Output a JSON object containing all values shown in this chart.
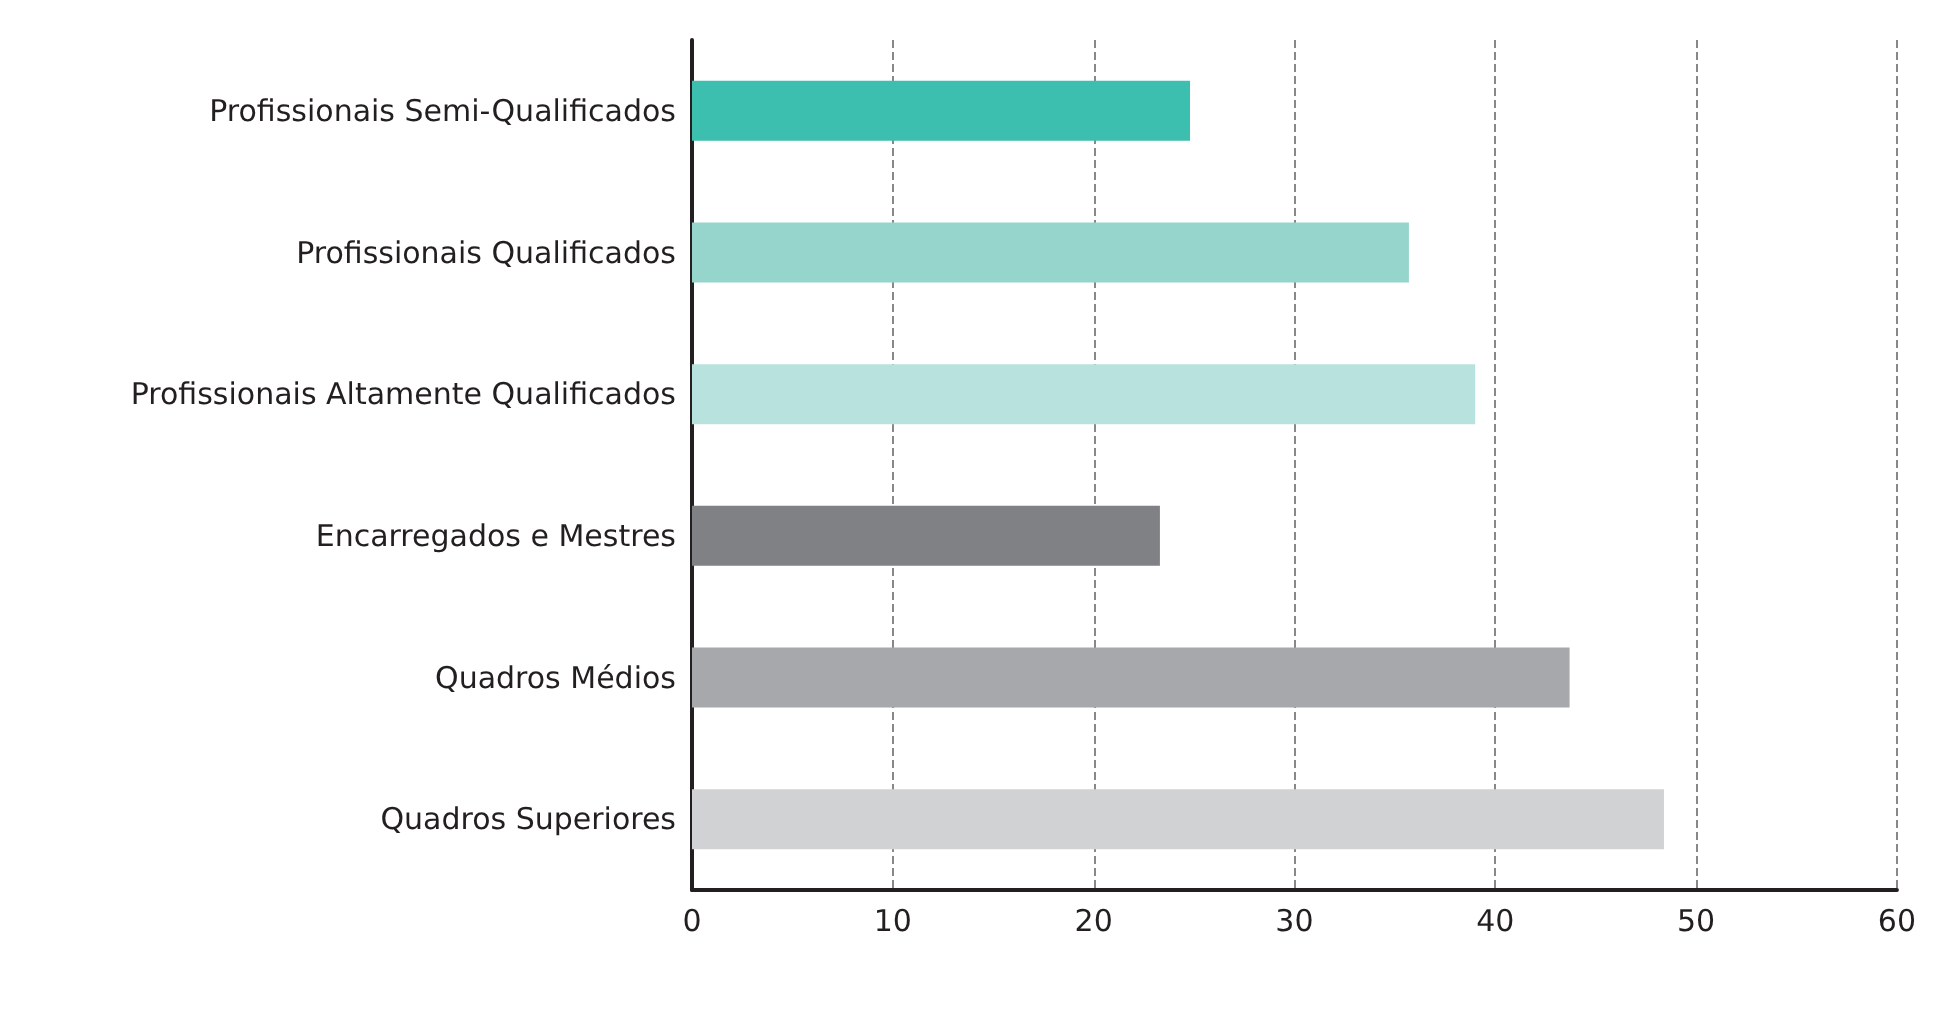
{
  "chart_data": {
    "type": "bar",
    "orientation": "horizontal",
    "categories": [
      "Profissionais Semi-Qualificados",
      "Profissionais Qualificados",
      "Profissionais Altamente Qualificados",
      "Encarregados e Mestres",
      "Quadros Médios",
      "Quadros Superiores"
    ],
    "values": [
      24.8,
      35.7,
      39.0,
      23.3,
      43.7,
      48.4
    ],
    "colors": [
      "#3dbfb0",
      "#96d5cc",
      "#b7e2dd",
      "#808184",
      "#a7a8ab",
      "#d1d2d4"
    ],
    "xlim": [
      0,
      60
    ],
    "xticks": [
      0,
      10,
      20,
      30,
      40,
      50,
      60
    ],
    "grid": "x"
  }
}
